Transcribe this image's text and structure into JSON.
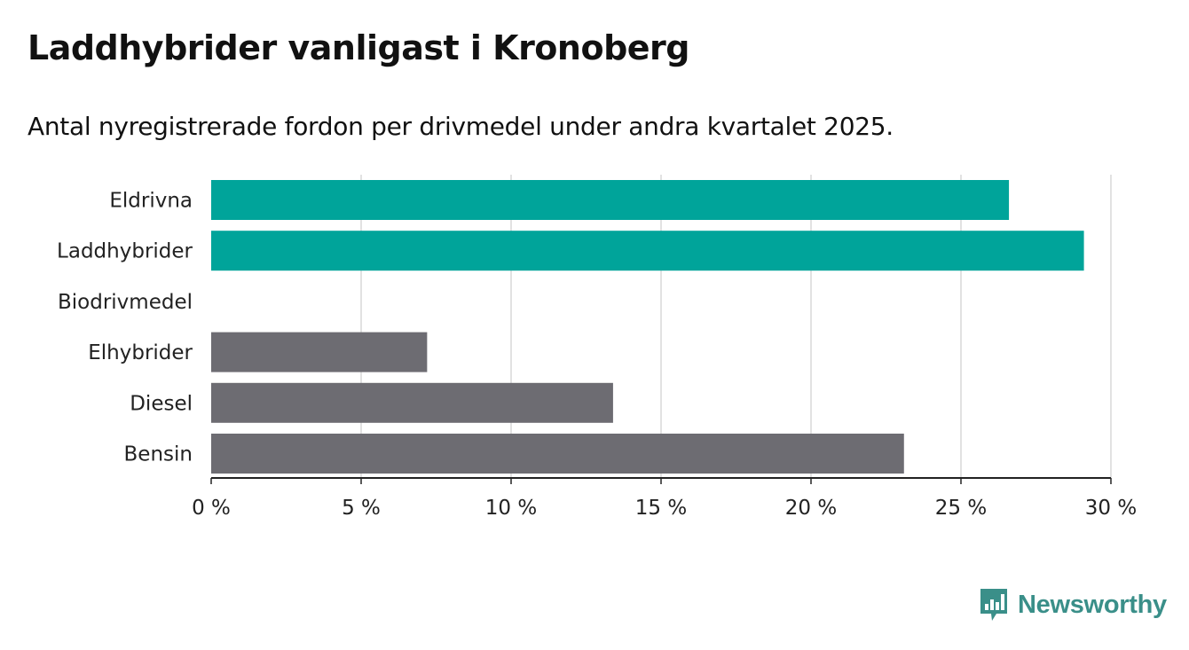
{
  "title": "Laddhybrider vanligast i Kronoberg",
  "subtitle": "Antal nyregistrerade fordon per drivmedel under andra kvartalet 2025.",
  "brand": "Newsworthy",
  "colors": {
    "highlight": "#00a49a",
    "default": "#6d6c72",
    "grid": "#d9d9d9",
    "axis": "#222222",
    "brand": "#3a8f89"
  },
  "chart_data": {
    "type": "bar",
    "orientation": "horizontal",
    "categories": [
      "Eldrivna",
      "Laddhybrider",
      "Biodrivmedel",
      "Elhybrider",
      "Diesel",
      "Bensin"
    ],
    "values": [
      26.6,
      29.1,
      0,
      7.2,
      13.4,
      23.1
    ],
    "highlighted": [
      "Eldrivna",
      "Laddhybrider"
    ],
    "xlim": [
      0,
      30
    ],
    "xticks": [
      0,
      5,
      10,
      15,
      20,
      25,
      30
    ],
    "xtick_labels": [
      "0 %",
      "5 %",
      "10 %",
      "15 %",
      "20 %",
      "25 %",
      "30 %"
    ],
    "grid": true
  }
}
